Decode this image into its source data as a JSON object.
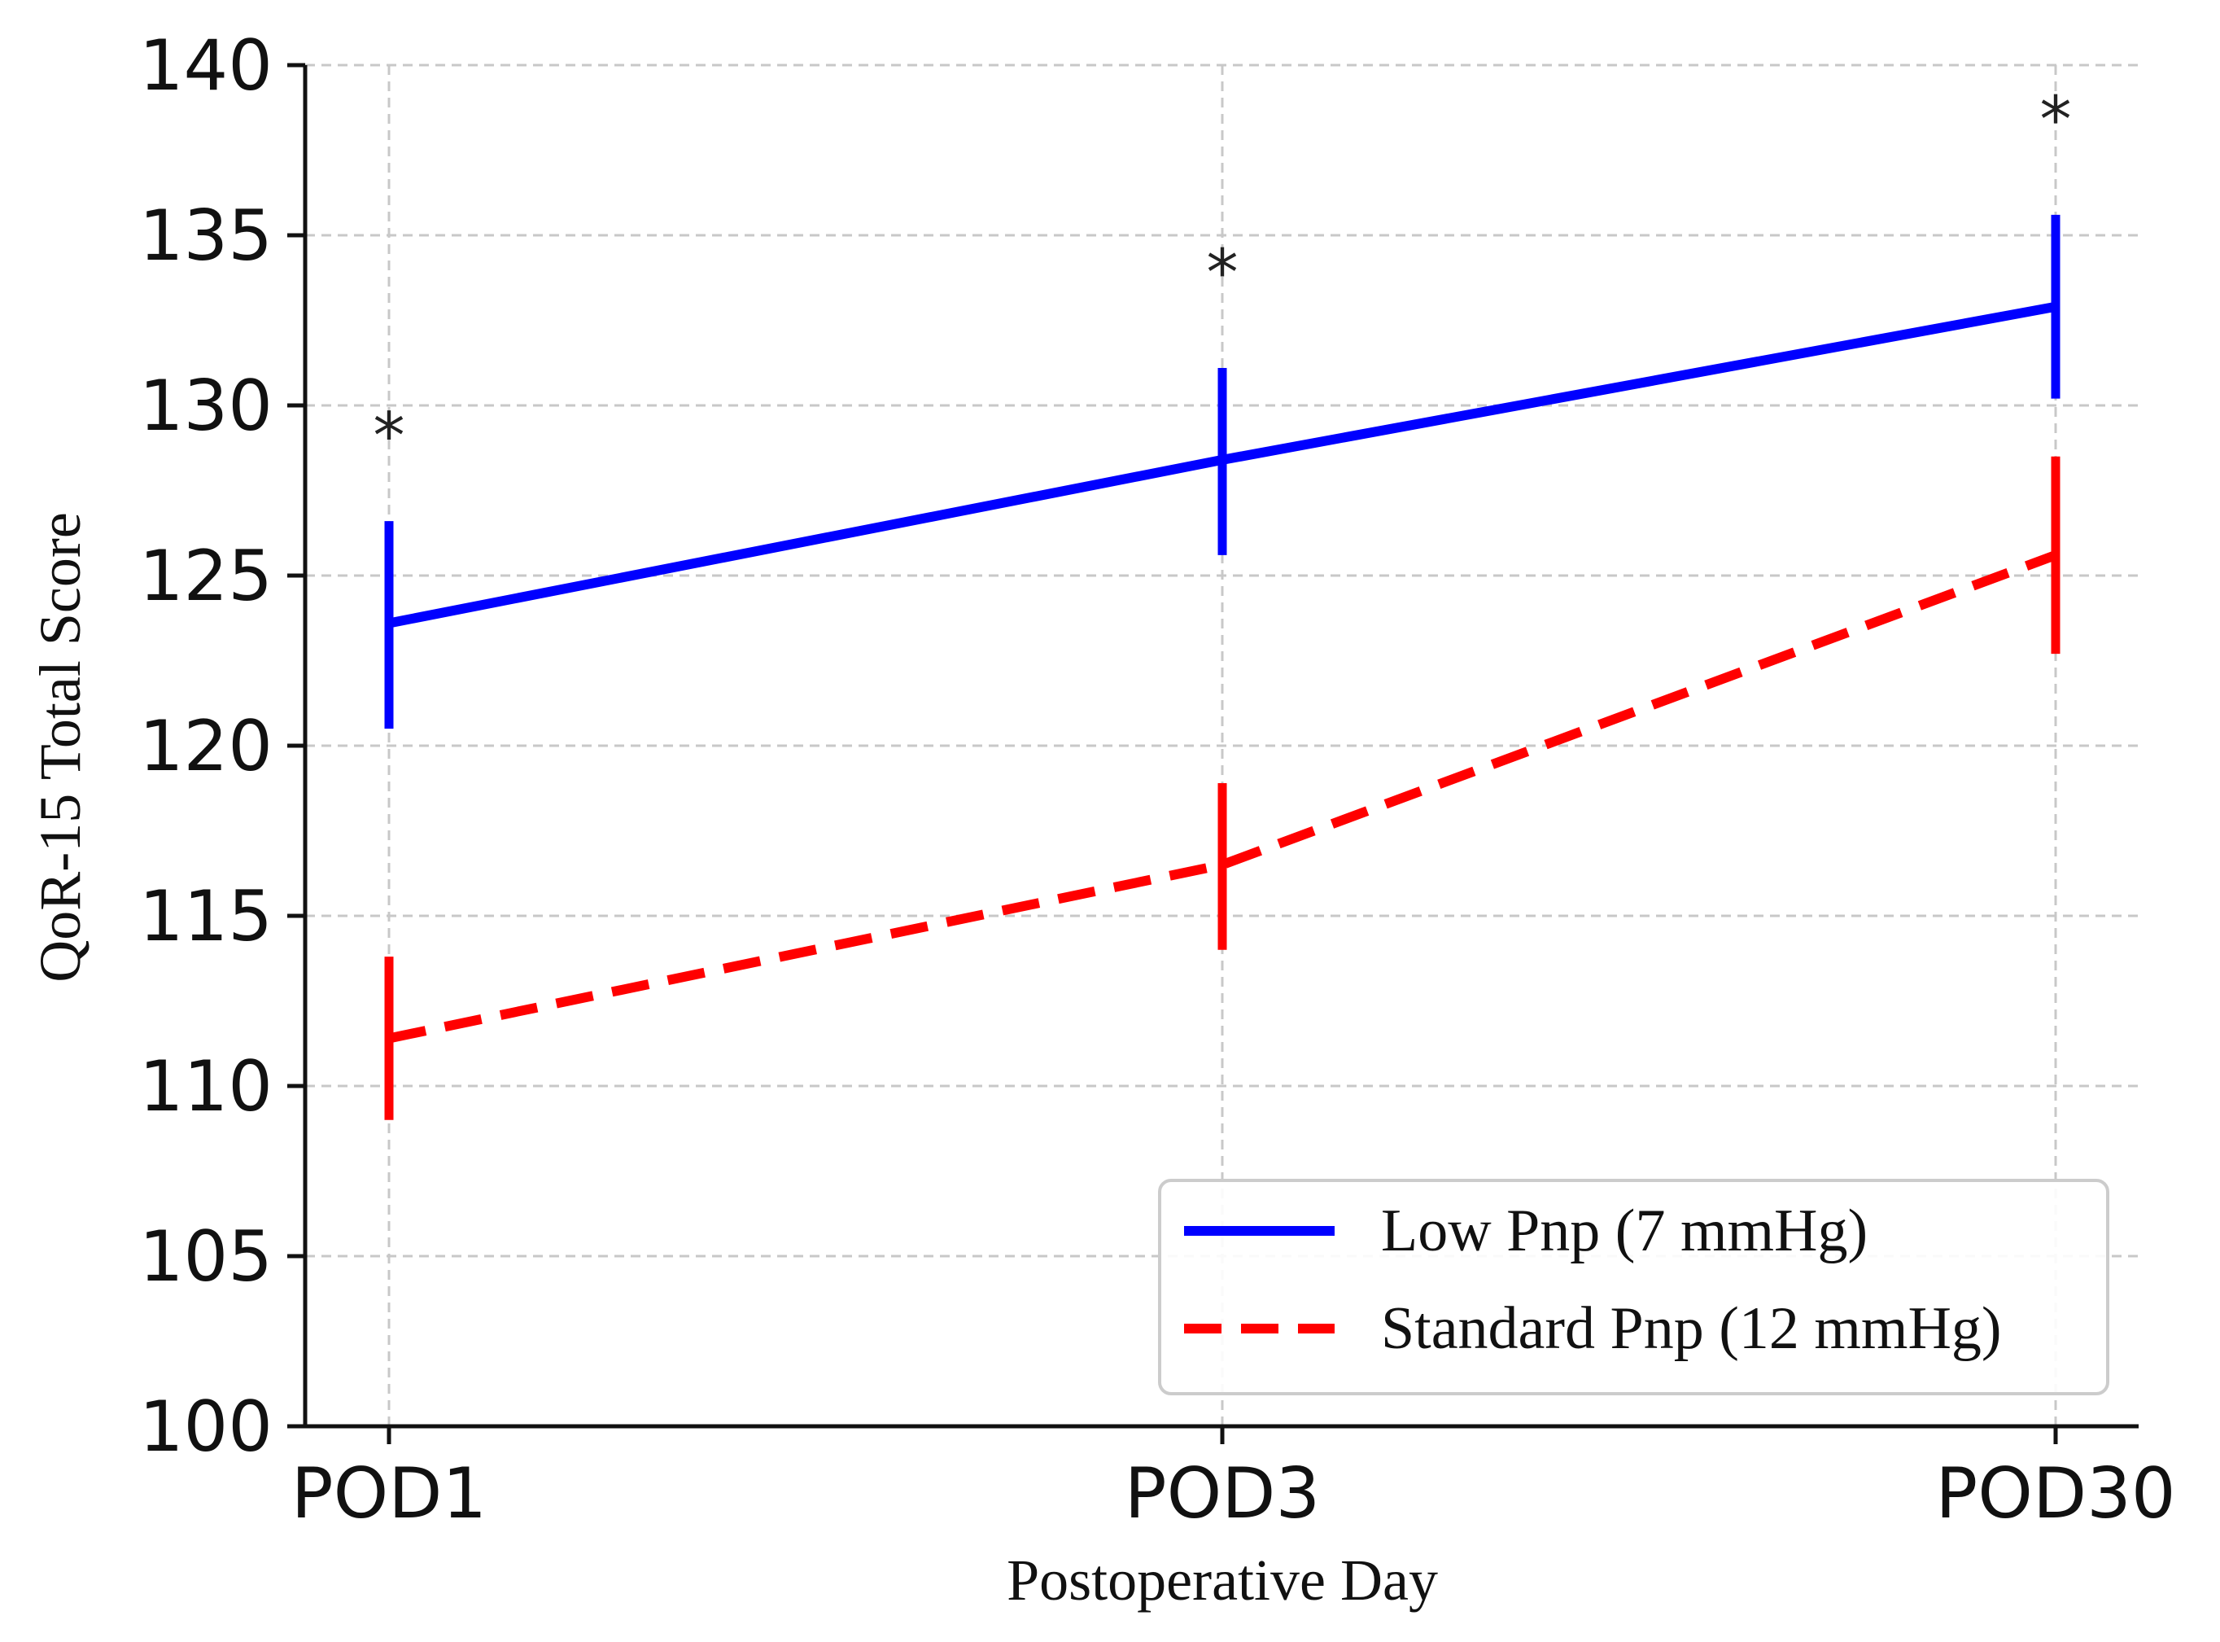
{
  "chart_data": {
    "type": "line",
    "title": "",
    "xlabel": "Postoperative Day",
    "ylabel": "QoR-15 Total Score",
    "categories": [
      "POD1",
      "POD3",
      "POD30"
    ],
    "ylim": [
      100,
      140
    ],
    "yticks": [
      100,
      105,
      110,
      115,
      120,
      125,
      130,
      135,
      140
    ],
    "ytick_labels": [
      "100",
      "105",
      "110",
      "115",
      "120",
      "125",
      "130",
      "135",
      "140"
    ],
    "grid": true,
    "legend_position": "bottom-right",
    "series": [
      {
        "name": "Low Pnp (7 mmHg)",
        "color": "#0000ff",
        "line_style": "solid",
        "values": [
          123.6,
          128.4,
          132.9
        ],
        "error_low": [
          120.5,
          125.6,
          130.2
        ],
        "error_high": [
          126.6,
          131.1,
          135.6
        ]
      },
      {
        "name": "Standard Pnp (12 mmHg)",
        "color": "#ff0000",
        "line_style": "dashed",
        "values": [
          111.4,
          116.5,
          125.6
        ],
        "error_low": [
          109.0,
          114.0,
          122.7
        ],
        "error_high": [
          113.8,
          118.9,
          128.5
        ]
      }
    ],
    "annotations": [
      {
        "category": "POD1",
        "text": "*",
        "value": 129.6
      },
      {
        "category": "POD3",
        "text": "*",
        "value": 134.4
      },
      {
        "category": "POD30",
        "text": "*",
        "value": 138.9
      }
    ]
  }
}
